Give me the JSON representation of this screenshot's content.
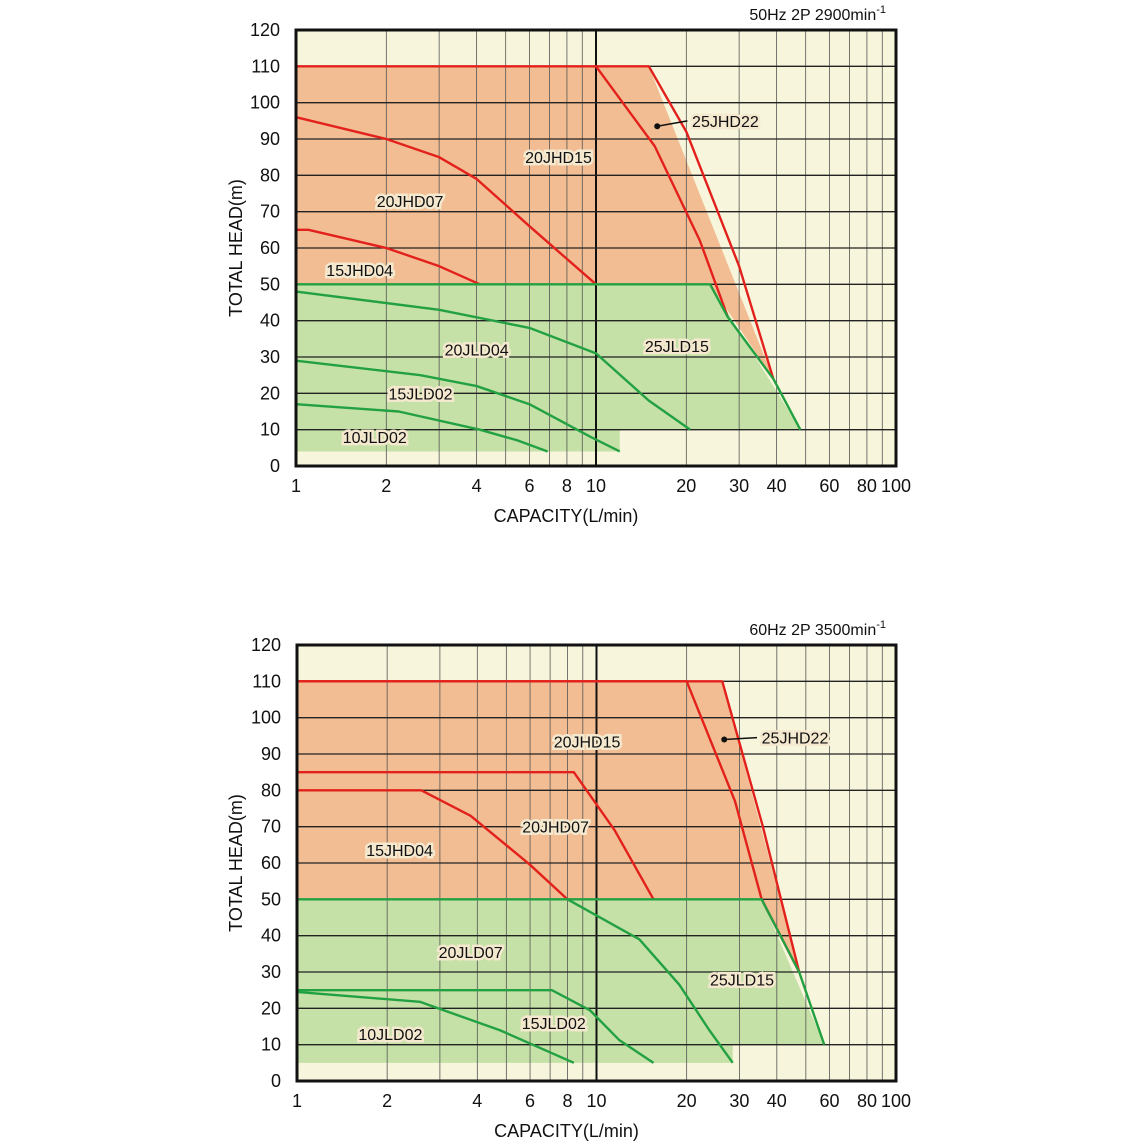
{
  "colors": {
    "background": "#f7f6dc",
    "red_fill": "#f2bd92",
    "green_fill": "#c5e1a7",
    "red_line": "#e3211c",
    "green_line": "#23a142",
    "grid": "#333333"
  },
  "chart_data": [
    {
      "type": "line",
      "title": "50Hz 2P 2900min",
      "title_sup": "-1",
      "xlabel": "CAPACITY(L/min)",
      "ylabel": "TOTAL HEAD(m)",
      "xscale": "log",
      "xlim": [
        1,
        100
      ],
      "ylim": [
        0,
        120
      ],
      "grid": true,
      "xticks": [
        1,
        2,
        4,
        6,
        8,
        10,
        20,
        30,
        40,
        60,
        80,
        100
      ],
      "yticks": [
        0,
        10,
        20,
        30,
        40,
        50,
        60,
        70,
        80,
        90,
        100,
        110,
        120
      ],
      "regions": [
        {
          "name": "JHD range",
          "color": "red",
          "points": [
            [
              1,
              110
            ],
            [
              15,
              110
            ],
            [
              39,
              24
            ],
            [
              24,
              50
            ],
            [
              1,
              50
            ]
          ]
        },
        {
          "name": "JLD range",
          "color": "green",
          "points": [
            [
              1,
              50
            ],
            [
              24,
              50
            ],
            [
              48,
              10
            ],
            [
              12,
              10
            ],
            [
              12,
              4
            ],
            [
              1,
              4
            ]
          ]
        }
      ],
      "series": [
        {
          "name": "25JHD22",
          "color": "red",
          "points": [
            [
              1,
              110
            ],
            [
              15,
              110
            ],
            [
              20,
              92
            ],
            [
              30,
              55
            ],
            [
              39,
              24
            ]
          ],
          "label_at": [
            27,
            95
          ],
          "leader_from": [
            16,
            93.5
          ]
        },
        {
          "name": "20JHD15",
          "color": "red",
          "points": [
            [
              10,
              110
            ],
            [
              15.7,
              88
            ],
            [
              22.2,
              62
            ],
            [
              27.5,
              41
            ]
          ],
          "label_at": [
            7.5,
            85
          ]
        },
        {
          "name": "20JHD07",
          "color": "red",
          "points": [
            [
              1,
              96
            ],
            [
              2,
              90
            ],
            [
              3,
              85
            ],
            [
              4,
              79
            ],
            [
              6,
              66
            ],
            [
              10,
              50
            ]
          ],
          "label_at": [
            2.4,
            73
          ]
        },
        {
          "name": "15JHD04",
          "color": "red",
          "points": [
            [
              1,
              65
            ],
            [
              1.1,
              65
            ],
            [
              2,
              60
            ],
            [
              3,
              55
            ],
            [
              4.1,
              50
            ]
          ],
          "label_at": [
            1.63,
            54
          ]
        },
        {
          "name": "25JLD15",
          "color": "green",
          "points": [
            [
              1,
              50
            ],
            [
              24,
              50
            ],
            [
              27.5,
              41
            ],
            [
              39,
              24
            ],
            [
              48,
              10
            ]
          ],
          "label_at": [
            18.6,
            33
          ]
        },
        {
          "name": "20JLD04",
          "color": "green",
          "points": [
            [
              1,
              48
            ],
            [
              3,
              43
            ],
            [
              6,
              38
            ],
            [
              10,
              31
            ],
            [
              15,
              18
            ],
            [
              20.6,
              10
            ]
          ],
          "label_at": [
            4,
            32
          ]
        },
        {
          "name": "15JLD02",
          "color": "green",
          "points": [
            [
              1,
              29
            ],
            [
              2.6,
              25
            ],
            [
              4,
              22
            ],
            [
              6,
              17
            ],
            [
              9.6,
              8
            ],
            [
              12,
              4
            ]
          ],
          "label_at": [
            2.6,
            20
          ]
        },
        {
          "name": "10JLD02",
          "color": "green",
          "points": [
            [
              1,
              17
            ],
            [
              2.2,
              15
            ],
            [
              4.1,
              10
            ],
            [
              5.5,
              7
            ],
            [
              6.9,
              4
            ]
          ],
          "label_at": [
            1.83,
            8
          ]
        }
      ]
    },
    {
      "type": "line",
      "title": "60Hz 2P 3500min",
      "title_sup": "-1",
      "xlabel": "CAPACITY(L/min)",
      "ylabel": "TOTAL HEAD(m)",
      "xscale": "log",
      "xlim": [
        1,
        100
      ],
      "ylim": [
        0,
        120
      ],
      "grid": true,
      "xticks": [
        1,
        2,
        4,
        6,
        8,
        10,
        20,
        30,
        40,
        60,
        80,
        100
      ],
      "yticks": [
        0,
        10,
        20,
        30,
        40,
        50,
        60,
        70,
        80,
        90,
        100,
        110,
        120
      ],
      "regions": [
        {
          "name": "JHD range",
          "color": "red",
          "points": [
            [
              1,
              110
            ],
            [
              26.3,
              110
            ],
            [
              47.5,
              30
            ],
            [
              35.6,
              50
            ],
            [
              1,
              50
            ]
          ]
        },
        {
          "name": "JLD range",
          "color": "green",
          "points": [
            [
              1,
              50
            ],
            [
              35.6,
              50
            ],
            [
              57.6,
              10
            ],
            [
              28.5,
              10
            ],
            [
              28.5,
              5
            ],
            [
              1,
              5
            ]
          ]
        }
      ],
      "series": [
        {
          "name": "25JHD22",
          "color": "red",
          "points": [
            [
              1,
              110
            ],
            [
              26.3,
              110
            ],
            [
              35.8,
              70.5
            ],
            [
              47.5,
              30
            ]
          ],
          "label_at": [
            46,
            94.5
          ],
          "leader_from": [
            26.7,
            94
          ]
        },
        {
          "name": "20JHD15",
          "color": "red",
          "points": [
            [
              1,
              110
            ],
            [
              20,
              110
            ],
            [
              29,
              77
            ],
            [
              35.6,
              50
            ],
            [
              47.5,
              30
            ]
          ],
          "label_at": [
            9.3,
            93.5
          ]
        },
        {
          "name": "20JHD07",
          "color": "red",
          "points": [
            [
              1,
              85
            ],
            [
              8.4,
              85
            ],
            [
              11.5,
              69
            ],
            [
              15.5,
              50
            ]
          ],
          "label_at": [
            7.3,
            70
          ]
        },
        {
          "name": "15JHD04",
          "color": "red",
          "points": [
            [
              1,
              80
            ],
            [
              2.6,
              80
            ],
            [
              3.8,
              73
            ],
            [
              6,
              59.5
            ],
            [
              8,
              50
            ]
          ],
          "label_at": [
            2.2,
            63.6
          ]
        },
        {
          "name": "25JLD15",
          "color": "green",
          "points": [
            [
              1,
              50
            ],
            [
              35.6,
              50
            ],
            [
              47.5,
              30
            ],
            [
              57.6,
              10
            ]
          ],
          "label_at": [
            30.6,
            28
          ]
        },
        {
          "name": "20JLD07",
          "color": "green",
          "points": [
            [
              8,
              50
            ],
            [
              13.9,
              39
            ],
            [
              18.9,
              26.5
            ],
            [
              23.8,
              14
            ],
            [
              28.5,
              5
            ]
          ],
          "label_at": [
            3.8,
            35.5
          ]
        },
        {
          "name": "15JLD02",
          "color": "green",
          "points": [
            [
              1,
              25
            ],
            [
              7.1,
              25
            ],
            [
              9.5,
              19.5
            ],
            [
              11.9,
              11.3
            ],
            [
              15.5,
              5
            ]
          ],
          "label_at": [
            7.2,
            16
          ]
        },
        {
          "name": "10JLD02",
          "color": "green",
          "points": [
            [
              1,
              24.5
            ],
            [
              2.57,
              21.8
            ],
            [
              4.75,
              14
            ],
            [
              8.4,
              5
            ]
          ],
          "label_at": [
            2.05,
            13
          ]
        }
      ]
    }
  ]
}
